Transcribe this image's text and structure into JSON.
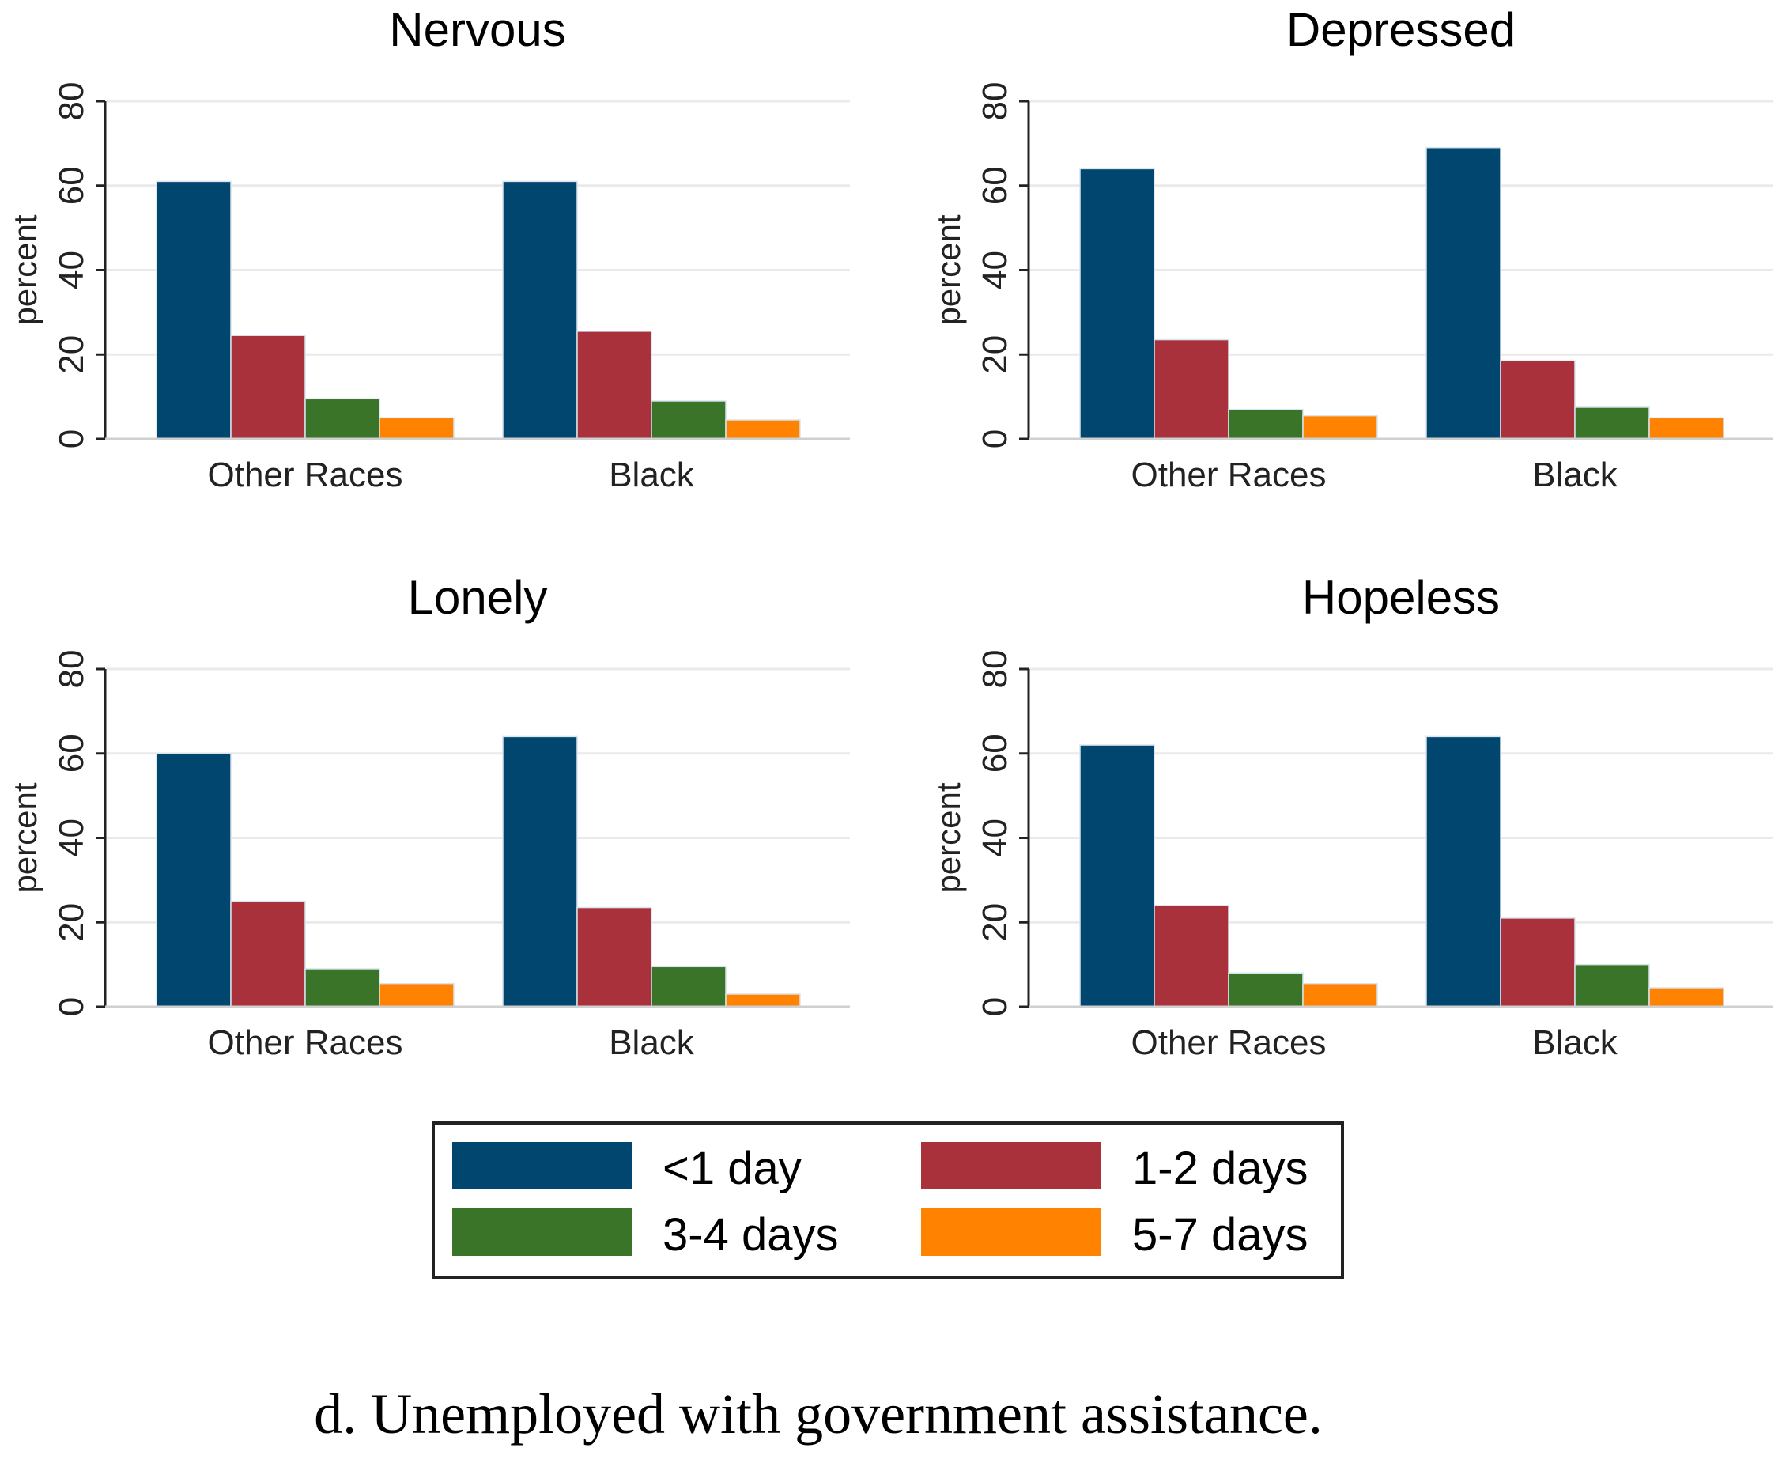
{
  "chart_data": [
    {
      "type": "bar",
      "title": "Nervous",
      "ylabel": "percent",
      "ylim": [
        0,
        80
      ],
      "yticks": [
        "0",
        "20",
        "40",
        "60",
        "80"
      ],
      "categories": [
        "Other Races",
        "Black"
      ],
      "series": [
        {
          "name": "<1 day",
          "values": [
            61,
            61
          ]
        },
        {
          "name": "1-2 days",
          "values": [
            24.5,
            25.5
          ]
        },
        {
          "name": "3-4 days",
          "values": [
            9.5,
            9
          ]
        },
        {
          "name": "5-7 days",
          "values": [
            5,
            4.5
          ]
        }
      ]
    },
    {
      "type": "bar",
      "title": "Depressed",
      "ylabel": "percent",
      "ylim": [
        0,
        80
      ],
      "yticks": [
        "0",
        "20",
        "40",
        "60",
        "80"
      ],
      "categories": [
        "Other Races",
        "Black"
      ],
      "series": [
        {
          "name": "<1 day",
          "values": [
            64,
            69
          ]
        },
        {
          "name": "1-2 days",
          "values": [
            23.5,
            18.5
          ]
        },
        {
          "name": "3-4 days",
          "values": [
            7,
            7.5
          ]
        },
        {
          "name": "5-7 days",
          "values": [
            5.5,
            5
          ]
        }
      ]
    },
    {
      "type": "bar",
      "title": "Lonely",
      "ylabel": "percent",
      "ylim": [
        0,
        80
      ],
      "yticks": [
        "0",
        "20",
        "40",
        "60",
        "80"
      ],
      "categories": [
        "Other Races",
        "Black"
      ],
      "series": [
        {
          "name": "<1 day",
          "values": [
            60,
            64
          ]
        },
        {
          "name": "1-2 days",
          "values": [
            25,
            23.5
          ]
        },
        {
          "name": "3-4 days",
          "values": [
            9,
            9.5
          ]
        },
        {
          "name": "5-7 days",
          "values": [
            5.5,
            3
          ]
        }
      ]
    },
    {
      "type": "bar",
      "title": "Hopeless",
      "ylabel": "percent",
      "ylim": [
        0,
        80
      ],
      "yticks": [
        "0",
        "20",
        "40",
        "60",
        "80"
      ],
      "categories": [
        "Other Races",
        "Black"
      ],
      "series": [
        {
          "name": "<1 day",
          "values": [
            62,
            64
          ]
        },
        {
          "name": "1-2 days",
          "values": [
            24,
            21
          ]
        },
        {
          "name": "3-4 days",
          "values": [
            8,
            10
          ]
        },
        {
          "name": "5-7 days",
          "values": [
            5.5,
            4.5
          ]
        }
      ]
    }
  ],
  "colors": [
    "#00466e",
    "#a8313b",
    "#3a7428",
    "#ff8200"
  ],
  "legend": {
    "items": [
      "<1 day",
      "1-2 days",
      "3-4 days",
      "5-7 days"
    ],
    "placement": "bottom-center"
  },
  "caption": "d. Unemployed with government assistance."
}
